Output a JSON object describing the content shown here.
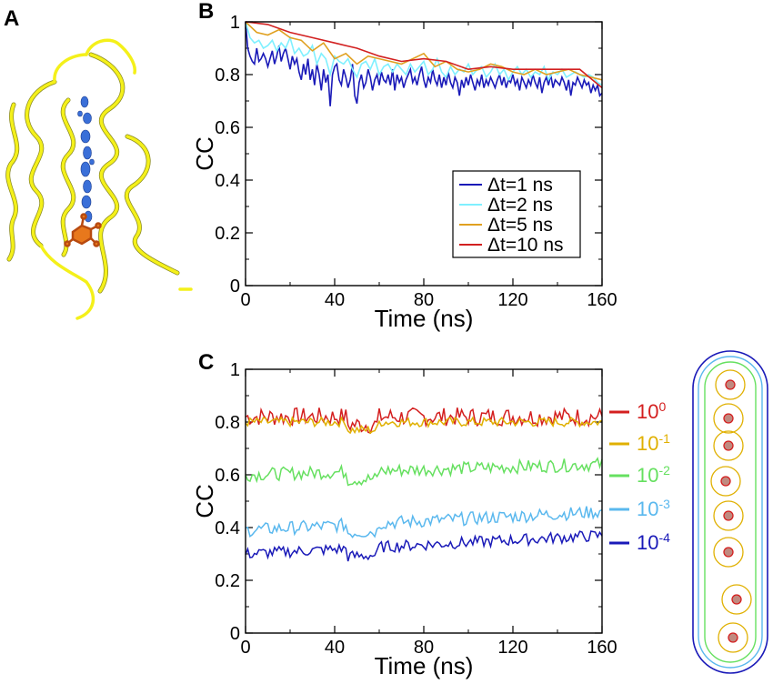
{
  "panels": {
    "a": "A",
    "b": "B",
    "c": "C"
  },
  "chart_data": [
    {
      "panel": "B",
      "type": "line",
      "xlabel": "Time (ns)",
      "ylabel": "CC",
      "xlim": [
        0,
        160
      ],
      "ylim": [
        0,
        1
      ],
      "xticks": [
        "0",
        "40",
        "80",
        "120",
        "160"
      ],
      "yticks": [
        "0",
        "0.2",
        "0.4",
        "0.6",
        "0.8",
        "1"
      ],
      "legend_position": "bottom-right",
      "series": [
        {
          "name": "Δt=1 ns",
          "color": "#1a1ab8",
          "x": [
            0,
            1,
            2,
            3,
            4,
            5,
            6,
            7,
            8,
            9,
            10,
            11,
            12,
            13,
            14,
            15,
            16,
            17,
            18,
            19,
            20,
            21,
            22,
            23,
            24,
            25,
            26,
            27,
            28,
            29,
            30,
            31,
            32,
            33,
            34,
            35,
            36,
            37,
            38,
            39,
            40,
            41,
            42,
            43,
            44,
            45,
            46,
            47,
            48,
            49,
            50,
            51,
            52,
            53,
            54,
            55,
            56,
            57,
            58,
            59,
            60,
            61,
            62,
            63,
            64,
            65,
            66,
            67,
            68,
            69,
            70,
            71,
            72,
            73,
            74,
            75,
            76,
            77,
            78,
            79,
            80,
            81,
            82,
            83,
            84,
            85,
            86,
            87,
            88,
            89,
            90,
            91,
            92,
            93,
            94,
            95,
            96,
            97,
            98,
            99,
            100,
            101,
            102,
            103,
            104,
            105,
            106,
            107,
            108,
            109,
            110,
            111,
            112,
            113,
            114,
            115,
            116,
            117,
            118,
            119,
            120,
            121,
            122,
            123,
            124,
            125,
            126,
            127,
            128,
            129,
            130,
            131,
            132,
            133,
            134,
            135,
            136,
            137,
            138,
            139,
            140,
            141,
            142,
            143,
            144,
            145,
            146,
            147,
            148,
            149,
            150,
            151,
            152,
            153,
            154,
            155,
            156,
            157,
            158,
            159,
            160
          ],
          "y": [
            1.0,
            0.9,
            0.87,
            0.85,
            0.84,
            0.9,
            0.85,
            0.86,
            0.88,
            0.86,
            0.83,
            0.86,
            0.89,
            0.84,
            0.87,
            0.91,
            0.85,
            0.88,
            0.9,
            0.86,
            0.82,
            0.87,
            0.84,
            0.86,
            0.81,
            0.78,
            0.84,
            0.8,
            0.86,
            0.78,
            0.82,
            0.76,
            0.84,
            0.8,
            0.74,
            0.82,
            0.77,
            0.8,
            0.68,
            0.8,
            0.83,
            0.84,
            0.78,
            0.76,
            0.82,
            0.79,
            0.75,
            0.78,
            0.84,
            0.72,
            0.69,
            0.77,
            0.8,
            0.75,
            0.77,
            0.82,
            0.79,
            0.74,
            0.78,
            0.8,
            0.76,
            0.81,
            0.78,
            0.77,
            0.8,
            0.76,
            0.82,
            0.74,
            0.8,
            0.77,
            0.79,
            0.75,
            0.78,
            0.8,
            0.82,
            0.77,
            0.79,
            0.76,
            0.8,
            0.83,
            0.78,
            0.75,
            0.79,
            0.77,
            0.82,
            0.78,
            0.76,
            0.8,
            0.75,
            0.79,
            0.76,
            0.81,
            0.77,
            0.75,
            0.79,
            0.77,
            0.72,
            0.78,
            0.75,
            0.79,
            0.76,
            0.8,
            0.77,
            0.74,
            0.78,
            0.76,
            0.8,
            0.75,
            0.78,
            0.76,
            0.79,
            0.77,
            0.75,
            0.78,
            0.8,
            0.76,
            0.79,
            0.75,
            0.78,
            0.77,
            0.8,
            0.76,
            0.78,
            0.74,
            0.79,
            0.77,
            0.75,
            0.78,
            0.76,
            0.8,
            0.77,
            0.75,
            0.79,
            0.73,
            0.77,
            0.79,
            0.76,
            0.8,
            0.75,
            0.78,
            0.77,
            0.76,
            0.79,
            0.77,
            0.74,
            0.78,
            0.72,
            0.77,
            0.76,
            0.79,
            0.77,
            0.75,
            0.78,
            0.76,
            0.77,
            0.73,
            0.76,
            0.74,
            0.76,
            0.72,
            0.73
          ]
        },
        {
          "name": "Δt=2 ns",
          "color": "#7ff0ff",
          "x": [
            0,
            2,
            4,
            6,
            8,
            10,
            12,
            14,
            16,
            18,
            20,
            22,
            24,
            26,
            28,
            30,
            32,
            34,
            36,
            38,
            40,
            42,
            44,
            46,
            48,
            50,
            52,
            54,
            56,
            58,
            60,
            62,
            64,
            66,
            68,
            70,
            72,
            74,
            76,
            78,
            80,
            82,
            84,
            86,
            88,
            90,
            92,
            94,
            96,
            98,
            100,
            102,
            104,
            106,
            108,
            110,
            112,
            114,
            116,
            118,
            120,
            122,
            124,
            126,
            128,
            130,
            132,
            134,
            136,
            138,
            140,
            142,
            144,
            146,
            148,
            150,
            152,
            154,
            156,
            158,
            160
          ],
          "y": [
            1.0,
            0.94,
            0.92,
            0.93,
            0.9,
            0.91,
            0.93,
            0.89,
            0.92,
            0.9,
            0.94,
            0.88,
            0.9,
            0.87,
            0.88,
            0.91,
            0.84,
            0.88,
            0.86,
            0.8,
            0.87,
            0.85,
            0.84,
            0.86,
            0.82,
            0.79,
            0.84,
            0.85,
            0.82,
            0.86,
            0.8,
            0.83,
            0.84,
            0.81,
            0.84,
            0.82,
            0.8,
            0.84,
            0.81,
            0.83,
            0.85,
            0.8,
            0.82,
            0.86,
            0.81,
            0.79,
            0.83,
            0.8,
            0.82,
            0.81,
            0.84,
            0.8,
            0.82,
            0.83,
            0.79,
            0.81,
            0.84,
            0.8,
            0.82,
            0.78,
            0.81,
            0.83,
            0.8,
            0.82,
            0.79,
            0.81,
            0.8,
            0.83,
            0.78,
            0.81,
            0.8,
            0.82,
            0.79,
            0.8,
            0.81,
            0.8,
            0.79,
            0.8,
            0.79,
            0.77,
            0.76
          ]
        },
        {
          "name": "Δt=5 ns",
          "color": "#e0a020",
          "x": [
            0,
            5,
            10,
            15,
            20,
            25,
            30,
            35,
            40,
            45,
            50,
            55,
            60,
            65,
            70,
            75,
            80,
            85,
            90,
            95,
            100,
            105,
            110,
            115,
            120,
            125,
            130,
            135,
            140,
            145,
            150,
            155,
            160
          ],
          "y": [
            1.0,
            0.96,
            0.95,
            0.97,
            0.94,
            0.93,
            0.89,
            0.92,
            0.86,
            0.88,
            0.84,
            0.87,
            0.86,
            0.85,
            0.84,
            0.86,
            0.88,
            0.83,
            0.85,
            0.82,
            0.81,
            0.82,
            0.84,
            0.83,
            0.81,
            0.8,
            0.82,
            0.8,
            0.81,
            0.82,
            0.8,
            0.79,
            0.78
          ]
        },
        {
          "name": "Δt=10 ns",
          "color": "#d22020",
          "x": [
            0,
            10,
            20,
            30,
            40,
            50,
            60,
            70,
            80,
            90,
            100,
            110,
            120,
            130,
            140,
            150,
            160
          ],
          "y": [
            1.0,
            0.99,
            0.96,
            0.94,
            0.92,
            0.9,
            0.87,
            0.85,
            0.86,
            0.85,
            0.82,
            0.83,
            0.82,
            0.82,
            0.82,
            0.82,
            0.75
          ]
        }
      ]
    },
    {
      "panel": "C",
      "type": "line",
      "xlabel": "Time (ns)",
      "ylabel": "CC",
      "xlim": [
        0,
        160
      ],
      "ylim": [
        0,
        1
      ],
      "xticks": [
        "0",
        "40",
        "80",
        "120",
        "160"
      ],
      "yticks": [
        "0",
        "0.2",
        "0.4",
        "0.6",
        "0.8",
        "1"
      ],
      "series": [
        {
          "base": "10",
          "exp": "0",
          "color": "#d41f1f",
          "mean": 0.82,
          "amp": 0.035,
          "trend": 0.0
        },
        {
          "base": "10",
          "exp": "-1",
          "color": "#e0b000",
          "mean": 0.8,
          "amp": 0.018,
          "trend": 0.0
        },
        {
          "base": "10",
          "exp": "-2",
          "color": "#66e060",
          "mean": 0.6,
          "amp": 0.025,
          "trend": 0.04
        },
        {
          "base": "10",
          "exp": "-3",
          "color": "#5ab8ee",
          "mean": 0.39,
          "amp": 0.025,
          "trend": 0.07
        },
        {
          "base": "10",
          "exp": "-4",
          "color": "#1a1ab8",
          "mean": 0.3,
          "amp": 0.022,
          "trend": 0.07
        }
      ]
    }
  ]
}
